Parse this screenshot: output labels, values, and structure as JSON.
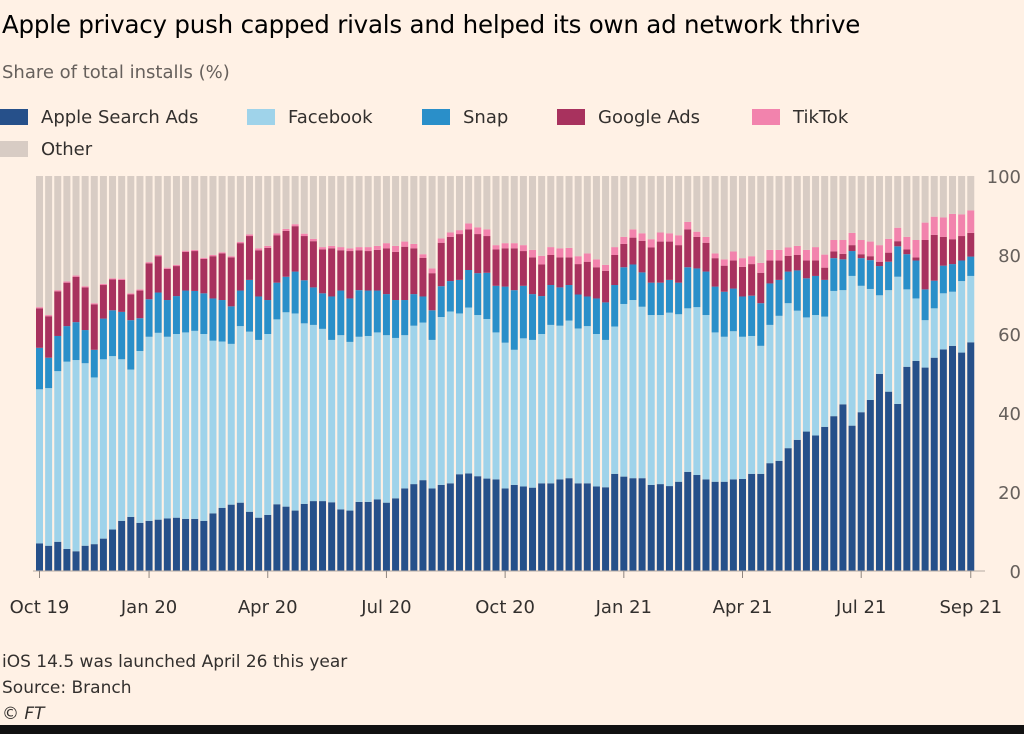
{
  "chart_data": {
    "type": "bar",
    "stacked": true,
    "title": "Apple privacy push capped rivals and helped its own ad network thrive",
    "subtitle": "Share of total installs (%)",
    "ylim": [
      0,
      100
    ],
    "y_ticks": [
      "0",
      "20",
      "40",
      "60",
      "80",
      "100"
    ],
    "x_tick_labels": [
      "Oct 19",
      "Jan 20",
      "Apr 20",
      "Jul 20",
      "Oct 20",
      "Jan 21",
      "Apr 21",
      "Jul 21",
      "Sep 21"
    ],
    "legend_placement": "top-left",
    "grid": false,
    "series": [
      {
        "name": "Apple Search Ads",
        "color": "#26508a",
        "values": [
          7,
          6.4,
          7.4,
          5.6,
          5,
          6.4,
          6.8,
          8.2,
          10.5,
          12.7,
          13.7,
          12.2,
          12.7,
          13,
          13.3,
          13.5,
          13.2,
          13.2,
          12.7,
          14.6,
          16,
          16.8,
          17.3,
          15,
          13.5,
          14.2,
          16.9,
          16.3,
          15.3,
          17,
          17.7,
          17.7,
          17.4,
          15.6,
          15.3,
          17.5,
          17.5,
          18.1,
          17.3,
          18.4,
          20.9,
          22,
          23,
          20.9,
          21.8,
          22.2,
          24.5,
          24.7,
          24,
          23.4,
          23.2,
          20.9,
          21.8,
          21.4,
          21.1,
          22.2,
          22.2,
          23.2,
          23.5,
          22.2,
          22.2,
          21.4,
          21.2,
          24.6,
          23.9,
          23.5,
          23.5,
          21.8,
          22,
          21.5,
          22.6,
          25.1,
          24.3,
          23.2,
          22.6,
          22.6,
          23.2,
          23.3,
          24.6,
          24.6,
          27.3,
          27.9,
          31.1,
          33.2,
          35.3,
          34.3,
          36.5,
          39.2,
          42.2,
          36.8,
          40.2,
          43.3,
          49.9,
          45.4,
          42.3,
          51.7,
          53.2,
          51.5,
          54,
          56.1,
          57,
          55.3,
          57.9
        ]
      },
      {
        "name": "Facebook",
        "color": "#9fd3ea",
        "values": [
          39,
          39.9,
          43.2,
          47.4,
          48.4,
          46.2,
          42.2,
          45.4,
          43.9,
          40.9,
          37.3,
          43.5,
          46.6,
          47.3,
          46,
          46.5,
          47.2,
          47.6,
          47.3,
          43.7,
          42.1,
          40.7,
          44.7,
          45.6,
          45,
          45.8,
          46.8,
          49.2,
          49.9,
          45.7,
          44.6,
          43.6,
          41.1,
          44.1,
          42.7,
          41.8,
          42,
          42.3,
          42.4,
          40.6,
          38.8,
          40.1,
          39.9,
          37.6,
          42.5,
          43.5,
          40.7,
          42,
          40.8,
          40.4,
          37.2,
          36.9,
          34.2,
          37.5,
          37.4,
          37.8,
          40.1,
          38.9,
          39.9,
          39.2,
          39.8,
          38.6,
          37.3,
          37.3,
          43.7,
          45.1,
          43.4,
          43,
          42.8,
          43.9,
          42.4,
          41.4,
          42.5,
          41.6,
          37.8,
          36.7,
          37.5,
          36,
          34.9,
          32.4,
          35,
          36.7,
          36.7,
          32.7,
          28.9,
          30.5,
          27.9,
          31.7,
          28.9,
          37.9,
          32,
          28.1,
          19.9,
          25.7,
          32.2,
          19.6,
          15.8,
          12,
          12.5,
          14.2,
          13.7,
          18.1,
          16.8
        ]
      },
      {
        "name": "Snap",
        "color": "#2a8fc9",
        "values": [
          10.5,
          7.7,
          8.9,
          9,
          9.6,
          8.4,
          7,
          10.3,
          11.6,
          12,
          12.5,
          8.3,
          9.5,
          10.2,
          9.3,
          9.6,
          10.6,
          10.1,
          10.3,
          10.7,
          10.5,
          9.5,
          9,
          13.1,
          11,
          8.6,
          9.3,
          9,
          10.6,
          10.9,
          9.5,
          9,
          11,
          11.3,
          11,
          11.8,
          11.5,
          10.6,
          10.4,
          9.6,
          8.9,
          8,
          6.6,
          7.5,
          7.8,
          7.7,
          8.5,
          9.5,
          10.6,
          11.7,
          11.8,
          14.2,
          15.1,
          13.3,
          11.6,
          9.6,
          10.1,
          9.7,
          9,
          8.6,
          7.5,
          9,
          9.5,
          10.5,
          9.3,
          9,
          8.7,
          8.2,
          8.2,
          8.3,
          8,
          10.4,
          9.8,
          11,
          11.6,
          11.4,
          10.8,
          10.2,
          10.2,
          10.8,
          10.5,
          9.1,
          8,
          10.2,
          9.9,
          9.9,
          9.3,
          8.3,
          7.8,
          6.3,
          7,
          7.3,
          7.4,
          7.2,
          7.7,
          8.9,
          9.6,
          7.8,
          7,
          7,
          7,
          5.2,
          4.9
        ]
      },
      {
        "name": "Google Ads",
        "color": "#a8325e",
        "values": [
          10,
          10.5,
          11.3,
          11,
          11.5,
          10.8,
          11.5,
          8.5,
          7.8,
          8.1,
          6.5,
          7,
          9.1,
          9.2,
          7.9,
          7.6,
          9.8,
          10.1,
          8.7,
          10.7,
          11.8,
          12.4,
          12,
          11.1,
          11.7,
          13.2,
          12,
          11.6,
          11.5,
          11.2,
          11.7,
          11.1,
          12.2,
          10.2,
          12,
          10.1,
          10,
          10.3,
          11.6,
          12.2,
          13.5,
          11.6,
          9.8,
          9.4,
          11,
          11.2,
          11.6,
          10.3,
          9.9,
          9.3,
          9.2,
          9.7,
          10.6,
          8.8,
          9.3,
          8,
          7.6,
          7.6,
          7,
          7.7,
          8.8,
          7.9,
          8,
          7.6,
          5.9,
          6.8,
          8,
          8.9,
          10.4,
          9.7,
          9.5,
          9.6,
          8,
          7.3,
          7.2,
          6.6,
          7.1,
          7.5,
          8,
          7.7,
          5.8,
          4.9,
          4,
          3.9,
          4.5,
          3.9,
          3.1,
          1.7,
          1.4,
          1.5,
          1,
          1,
          1.1,
          2.3,
          1.3,
          1.2,
          0.8,
          12.5,
          11.6,
          7.3,
          6.3,
          6.2,
          6
        ]
      },
      {
        "name": "TikTok",
        "color": "#f283ad",
        "values": [
          0.3,
          0.3,
          0.3,
          0.3,
          0.3,
          0.3,
          0.3,
          0.3,
          0.3,
          0.3,
          0.3,
          0.3,
          0.3,
          0.3,
          0.3,
          0.3,
          0.3,
          0.3,
          0.3,
          0.3,
          0.3,
          0.3,
          0.3,
          0.4,
          0.5,
          0.5,
          0.5,
          0.5,
          0.5,
          0.6,
          0.6,
          0.6,
          0.6,
          0.8,
          0.7,
          0.8,
          1,
          1,
          1.3,
          1.5,
          1.3,
          1.1,
          0.9,
          1.2,
          1.1,
          1.1,
          1,
          1.5,
          1.7,
          1.7,
          1.1,
          1.3,
          1.3,
          1.5,
          1.9,
          2.2,
          2,
          2.3,
          2.4,
          2,
          2.1,
          2,
          1.5,
          2,
          1.8,
          2.1,
          1.9,
          2.1,
          2.3,
          2.1,
          2.5,
          1.9,
          1.3,
          1.5,
          1.2,
          1.6,
          2.3,
          2.2,
          2,
          2.5,
          2.7,
          2.7,
          2.1,
          2.3,
          2.7,
          3.4,
          3.3,
          2.9,
          3.5,
          3.1,
          3.6,
          3.7,
          4.2,
          3.5,
          3.4,
          3.2,
          4.4,
          4.4,
          4.6,
          4.9,
          6.4,
          5.5,
          5.7
        ]
      },
      {
        "name": "Other",
        "color": "#d8ccc4",
        "values": [
          33.2,
          35.2,
          28.9,
          26.7,
          25.2,
          27.9,
          32.2,
          27.3,
          25.9,
          26,
          29.7,
          28.7,
          21.8,
          20,
          23.2,
          22.5,
          18.9,
          18.7,
          20.7,
          20,
          19.3,
          20.3,
          16.7,
          14.8,
          18.3,
          17.7,
          14.5,
          13.4,
          12.2,
          14.6,
          15.9,
          18,
          17.7,
          18,
          18.3,
          18,
          18,
          17.7,
          17,
          17.7,
          16.6,
          17.2,
          19.8,
          23.4,
          15.8,
          14.3,
          13.7,
          12,
          13,
          13.5,
          17.5,
          17,
          17,
          17.5,
          18.7,
          20.2,
          18,
          18.3,
          18.2,
          20.3,
          19.6,
          21.1,
          22.5,
          18,
          15.4,
          13.5,
          14.5,
          16,
          14.3,
          14.5,
          15,
          11.6,
          14.1,
          15.4,
          19.6,
          21.1,
          19.1,
          20.8,
          20.3,
          22,
          18.7,
          18.7,
          18.1,
          17.7,
          18.7,
          18,
          19.9,
          16.2,
          16.2,
          14.4,
          16.2,
          16.6,
          17.5,
          15.9,
          13.1,
          15.4,
          16.2,
          11.8,
          10.3,
          10.5,
          9.6,
          9.7,
          8.7
        ]
      }
    ]
  },
  "footer": {
    "note": "iOS 14.5 was launched April 26 this year",
    "source": "Source: Branch",
    "credit": "© FT"
  }
}
